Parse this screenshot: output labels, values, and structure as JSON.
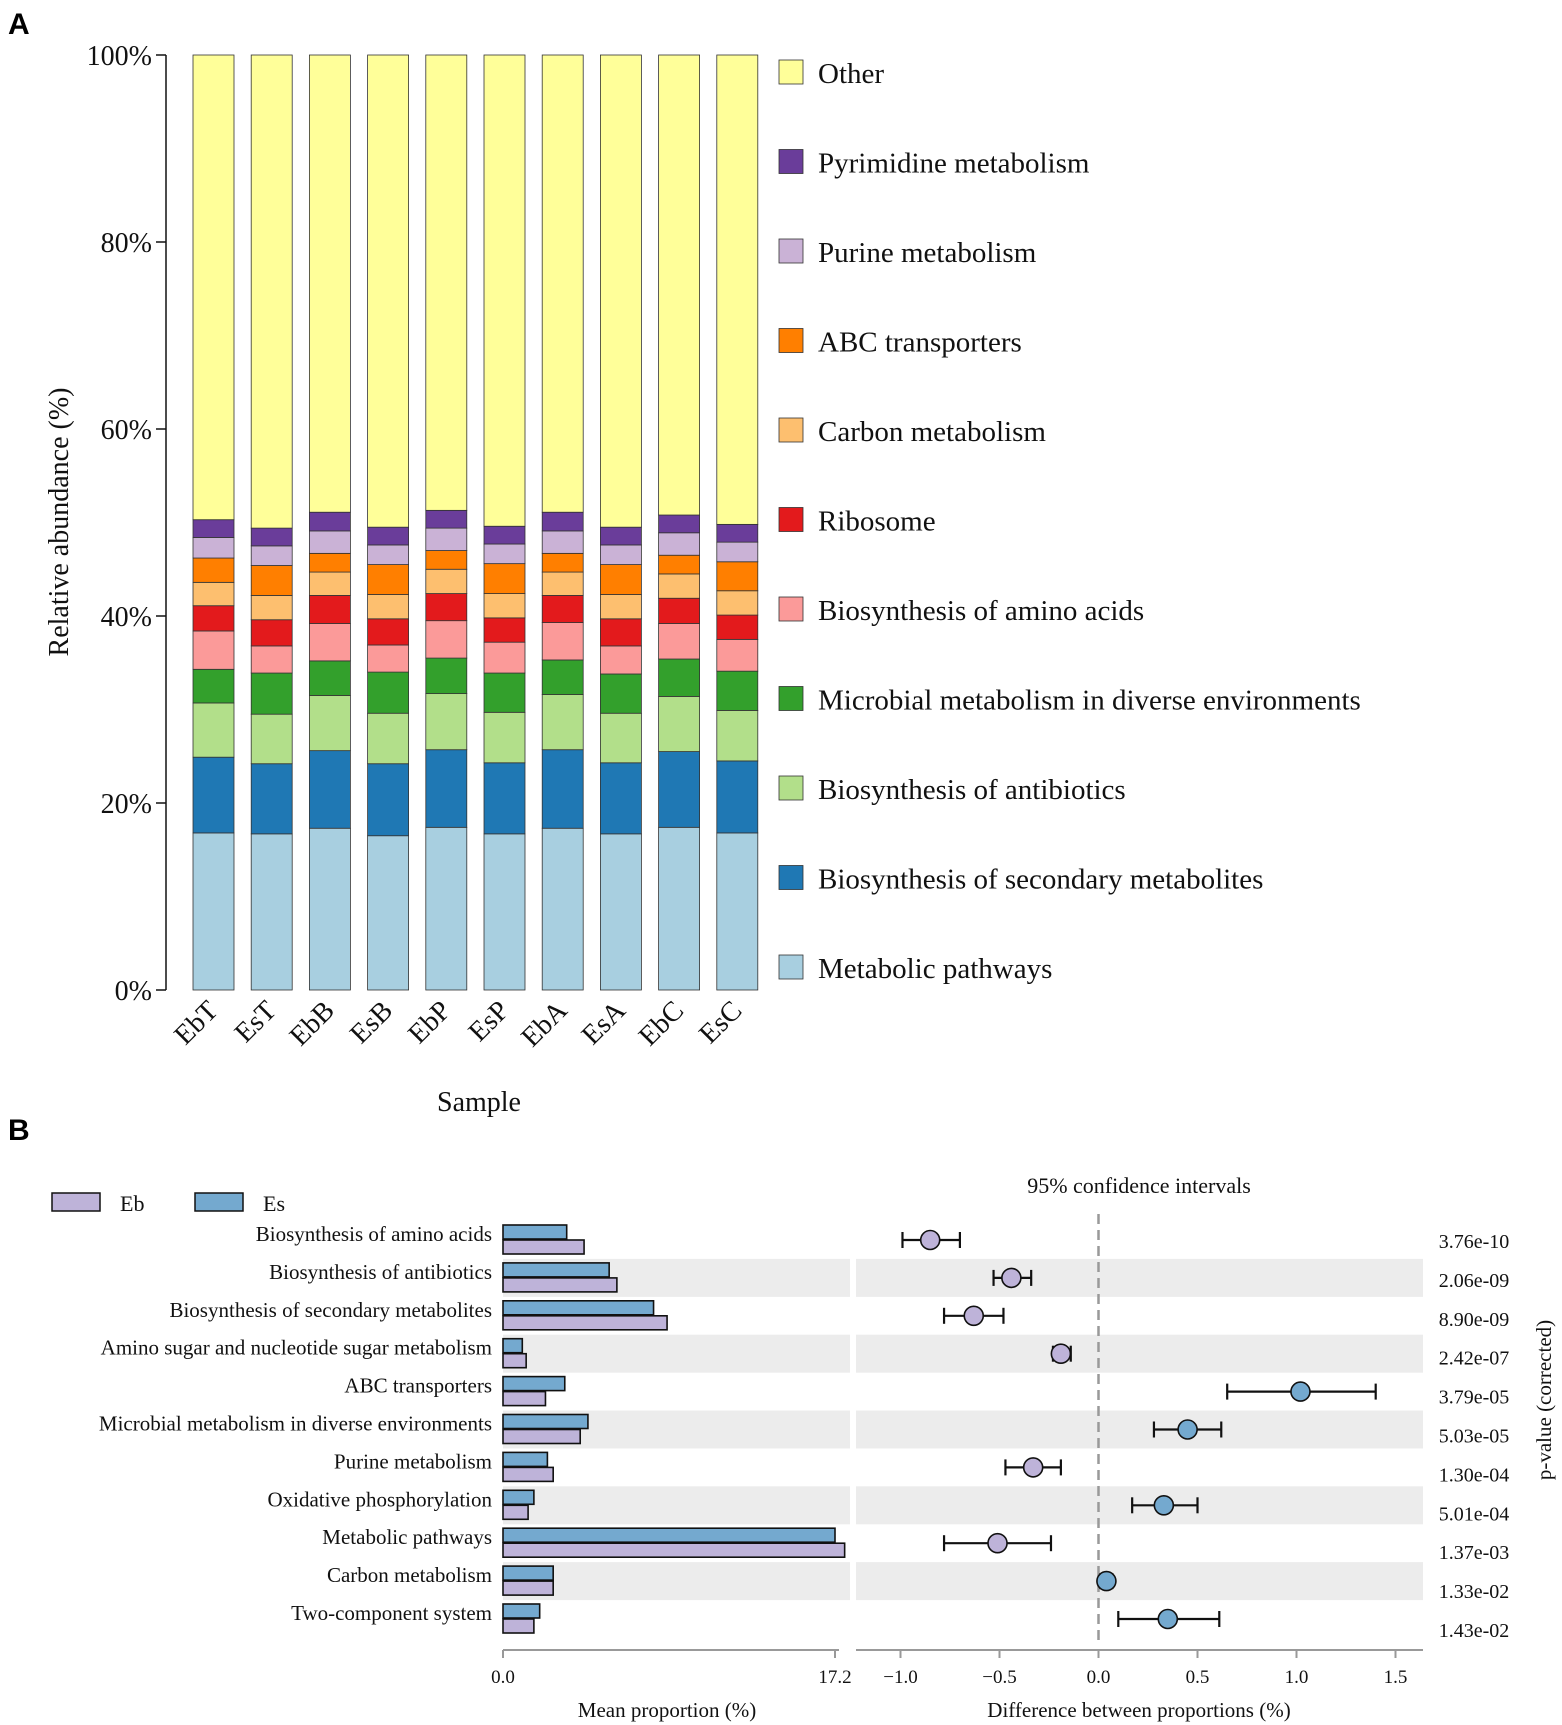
{
  "panels": {
    "a": {
      "letter": "A"
    },
    "b": {
      "letter": "B"
    }
  },
  "chart_data": [
    {
      "type": "bar",
      "stacked": true,
      "panel": "A",
      "xlabel": "Sample",
      "ylabel": "Relative abundance (%)",
      "ylim": [
        0,
        100
      ],
      "yticks": [
        "0%",
        "20%",
        "40%",
        "60%",
        "80%",
        "100%"
      ],
      "categories": [
        "EbT",
        "EsT",
        "EbB",
        "EsB",
        "EbP",
        "EsP",
        "EbA",
        "EsA",
        "EbC",
        "EsC"
      ],
      "legend_order": [
        "Other",
        "Pyrimidine metabolism",
        "Purine metabolism",
        "ABC transporters",
        "Carbon metabolism",
        "Ribosome",
        "Biosynthesis of amino acids",
        "Microbial metabolism in diverse environments",
        "Biosynthesis of antibiotics",
        "Biosynthesis of secondary metabolites",
        "Metabolic pathways"
      ],
      "series": [
        {
          "name": "Metabolic pathways",
          "color": "#a8cfe0",
          "values": [
            16.8,
            16.7,
            17.3,
            16.5,
            17.4,
            16.7,
            17.3,
            16.7,
            17.4,
            16.8
          ]
        },
        {
          "name": "Biosynthesis of secondary metabolites",
          "color": "#1f78b4",
          "values": [
            8.1,
            7.5,
            8.3,
            7.7,
            8.3,
            7.6,
            8.4,
            7.6,
            8.1,
            7.7
          ]
        },
        {
          "name": "Biosynthesis of antibiotics",
          "color": "#b2df8a",
          "values": [
            5.8,
            5.3,
            5.9,
            5.4,
            6.0,
            5.4,
            5.9,
            5.3,
            5.9,
            5.4
          ]
        },
        {
          "name": "Microbial metabolism in diverse environments",
          "color": "#33a02c",
          "values": [
            3.6,
            4.4,
            3.7,
            4.4,
            3.8,
            4.2,
            3.7,
            4.2,
            4.0,
            4.2
          ]
        },
        {
          "name": "Biosynthesis of amino acids",
          "color": "#fb9a99",
          "values": [
            4.1,
            2.9,
            4.0,
            2.9,
            4.0,
            3.3,
            4.0,
            3.0,
            3.8,
            3.4
          ]
        },
        {
          "name": "Ribosome",
          "color": "#e31a1c",
          "values": [
            2.7,
            2.8,
            3.0,
            2.8,
            2.9,
            2.6,
            2.9,
            2.9,
            2.7,
            2.6
          ]
        },
        {
          "name": "Carbon metabolism",
          "color": "#fdbf6f",
          "values": [
            2.5,
            2.6,
            2.5,
            2.6,
            2.6,
            2.6,
            2.5,
            2.6,
            2.6,
            2.6
          ]
        },
        {
          "name": "ABC transporters",
          "color": "#ff7f00",
          "values": [
            2.6,
            3.2,
            2.0,
            3.2,
            2.0,
            3.2,
            2.0,
            3.2,
            2.0,
            3.1
          ]
        },
        {
          "name": "Purine metabolism",
          "color": "#cab2d6",
          "values": [
            2.2,
            2.1,
            2.4,
            2.1,
            2.4,
            2.1,
            2.4,
            2.1,
            2.4,
            2.1
          ]
        },
        {
          "name": "Pyrimidine metabolism",
          "color": "#6a3d9a",
          "values": [
            1.9,
            1.9,
            2.0,
            1.9,
            1.9,
            1.9,
            2.0,
            1.9,
            1.9,
            1.9
          ]
        },
        {
          "name": "Other",
          "color": "#ffff99",
          "values": [
            49.7,
            50.6,
            48.9,
            50.5,
            48.7,
            50.4,
            48.9,
            50.5,
            49.2,
            50.2
          ]
        }
      ]
    },
    {
      "type": "bar",
      "orientation": "horizontal",
      "panel": "B",
      "title": "",
      "xlabel": "Mean proportion (%)",
      "xlim": [
        0,
        17.2
      ],
      "xticks": [
        "0.0",
        "17.2"
      ],
      "legend": [
        {
          "name": "Eb",
          "color": "#beb3d9"
        },
        {
          "name": "Es",
          "color": "#74a9cf"
        }
      ],
      "categories": [
        "Biosynthesis of amino acids",
        "Biosynthesis of antibiotics",
        "Biosynthesis of secondary metabolites",
        "Amino sugar and nucleotide sugar metabolism",
        "ABC transporters",
        "Microbial metabolism in diverse environments",
        "Purine metabolism",
        "Oxidative phosphorylation",
        "Metabolic pathways",
        "Carbon metabolism",
        "Two-component system"
      ],
      "series": [
        {
          "name": "Es",
          "values": [
            3.3,
            5.5,
            7.8,
            1.0,
            3.2,
            4.4,
            2.3,
            1.6,
            17.2,
            2.6,
            1.9
          ]
        },
        {
          "name": "Eb",
          "values": [
            4.2,
            5.9,
            8.5,
            1.2,
            2.2,
            4.0,
            2.6,
            1.3,
            17.7,
            2.6,
            1.6
          ]
        }
      ]
    },
    {
      "type": "scatter",
      "subtype": "confidence-interval",
      "panel": "B",
      "title": "95% confidence intervals",
      "xlabel": "Difference between proportions (%)",
      "xlim": [
        -1.2,
        1.6
      ],
      "xticks": [
        "−1.0",
        "−0.5",
        "0.0",
        "0.5",
        "1.0",
        "1.5"
      ],
      "xtick_values": [
        -1.0,
        -0.5,
        0.0,
        0.5,
        1.0,
        1.5
      ],
      "y2label": "p-value (corrected)",
      "categories": [
        "Biosynthesis of amino acids",
        "Biosynthesis of antibiotics",
        "Biosynthesis of secondary metabolites",
        "Amino sugar and nucleotide sugar metabolism",
        "ABC transporters",
        "Microbial metabolism in diverse environments",
        "Purine metabolism",
        "Oxidative phosphorylation",
        "Metabolic pathways",
        "Carbon metabolism",
        "Two-component system"
      ],
      "points": [
        {
          "diff": -0.85,
          "low": -0.99,
          "high": -0.7,
          "group": "Eb",
          "pvalue": "3.76e-10"
        },
        {
          "diff": -0.44,
          "low": -0.53,
          "high": -0.34,
          "group": "Eb",
          "pvalue": "2.06e-09"
        },
        {
          "diff": -0.63,
          "low": -0.78,
          "high": -0.48,
          "group": "Eb",
          "pvalue": "8.90e-09"
        },
        {
          "diff": -0.19,
          "low": -0.23,
          "high": -0.14,
          "group": "Eb",
          "pvalue": "2.42e-07"
        },
        {
          "diff": 1.02,
          "low": 0.65,
          "high": 1.4,
          "group": "Es",
          "pvalue": "3.79e-05"
        },
        {
          "diff": 0.45,
          "low": 0.28,
          "high": 0.62,
          "group": "Es",
          "pvalue": "5.03e-05"
        },
        {
          "diff": -0.33,
          "low": -0.47,
          "high": -0.19,
          "group": "Eb",
          "pvalue": "1.30e-04"
        },
        {
          "diff": 0.33,
          "low": 0.17,
          "high": 0.5,
          "group": "Es",
          "pvalue": "5.01e-04"
        },
        {
          "diff": -0.51,
          "low": -0.78,
          "high": -0.24,
          "group": "Eb",
          "pvalue": "1.37e-03"
        },
        {
          "diff": 0.04,
          "low": 0.01,
          "high": 0.07,
          "group": "Es",
          "pvalue": "1.33e-02"
        },
        {
          "diff": 0.35,
          "low": 0.1,
          "high": 0.61,
          "group": "Es",
          "pvalue": "1.43e-02"
        }
      ],
      "colors": {
        "Eb": "#beb3d9",
        "Es": "#74a9cf",
        "stripe": "#ececec",
        "zero_line": "#999999"
      }
    }
  ]
}
